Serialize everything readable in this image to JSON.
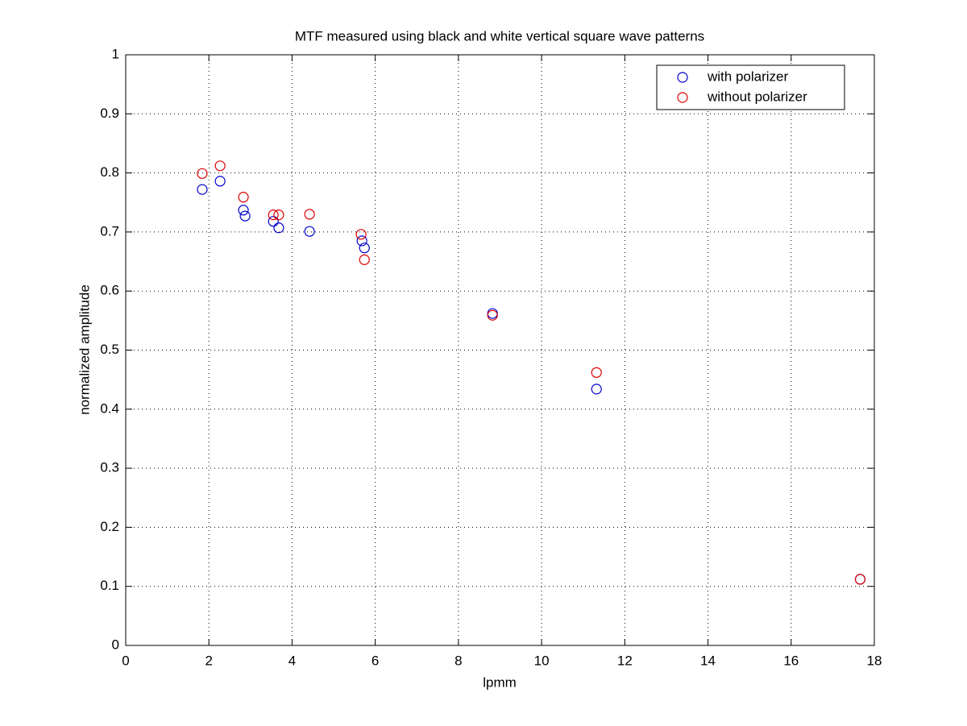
{
  "chart_data": {
    "type": "scatter",
    "title": "MTF measured using black and white vertical square wave patterns",
    "x_label": "lpmm",
    "y_label": "normalized amplitude",
    "xlim": [
      0,
      18
    ],
    "ylim": [
      0,
      1
    ],
    "xticks": [
      0,
      2,
      4,
      6,
      8,
      10,
      12,
      14,
      16,
      18
    ],
    "yticks": [
      0,
      0.1,
      0.2,
      0.3,
      0.4,
      0.5,
      0.6,
      0.7,
      0.8,
      0.9,
      1
    ],
    "grid": true,
    "legend": "upper right",
    "series": [
      {
        "name": "with polarizer",
        "color": "#0000cc",
        "x": [
          1.84,
          2.27,
          2.83,
          2.87,
          3.55,
          3.68,
          4.42,
          5.68,
          5.74,
          8.82,
          11.32,
          17.66
        ],
        "values": [
          0.772,
          0.786,
          0.737,
          0.727,
          0.718,
          0.707,
          0.701,
          0.685,
          0.673,
          0.562,
          0.434,
          0.112
        ]
      },
      {
        "name": "without polarizer",
        "color": "#dd0000",
        "x": [
          1.84,
          2.27,
          2.83,
          3.55,
          3.68,
          4.42,
          5.66,
          5.74,
          8.82,
          11.32,
          17.66
        ],
        "values": [
          0.799,
          0.812,
          0.759,
          0.729,
          0.729,
          0.73,
          0.696,
          0.653,
          0.559,
          0.462,
          0.112
        ]
      }
    ]
  }
}
